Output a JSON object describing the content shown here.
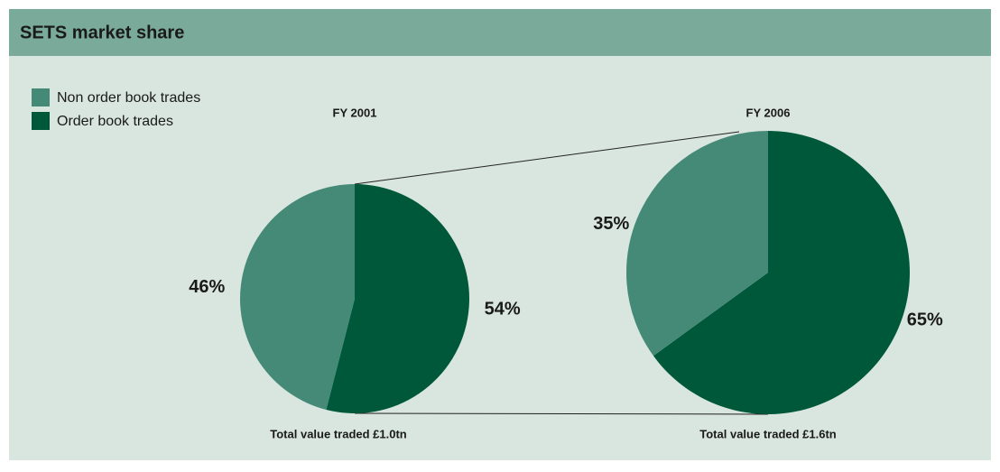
{
  "header": {
    "title": "SETS market share"
  },
  "chart_data": [
    {
      "type": "pie",
      "title": "FY 2001",
      "caption": "Total value traded £1.0tn",
      "categories": [
        "Non order book trades",
        "Order book trades"
      ],
      "values": [
        46,
        54
      ],
      "value_labels": [
        "46%",
        "54%"
      ],
      "colors": [
        "#458a77",
        "#00583a"
      ]
    },
    {
      "type": "pie",
      "title": "FY 2006",
      "caption": "Total value traded £1.6tn",
      "categories": [
        "Non order book trades",
        "Order book trades"
      ],
      "values": [
        35,
        65
      ],
      "value_labels": [
        "35%",
        "65%"
      ],
      "colors": [
        "#458a77",
        "#00583a"
      ]
    }
  ]
}
